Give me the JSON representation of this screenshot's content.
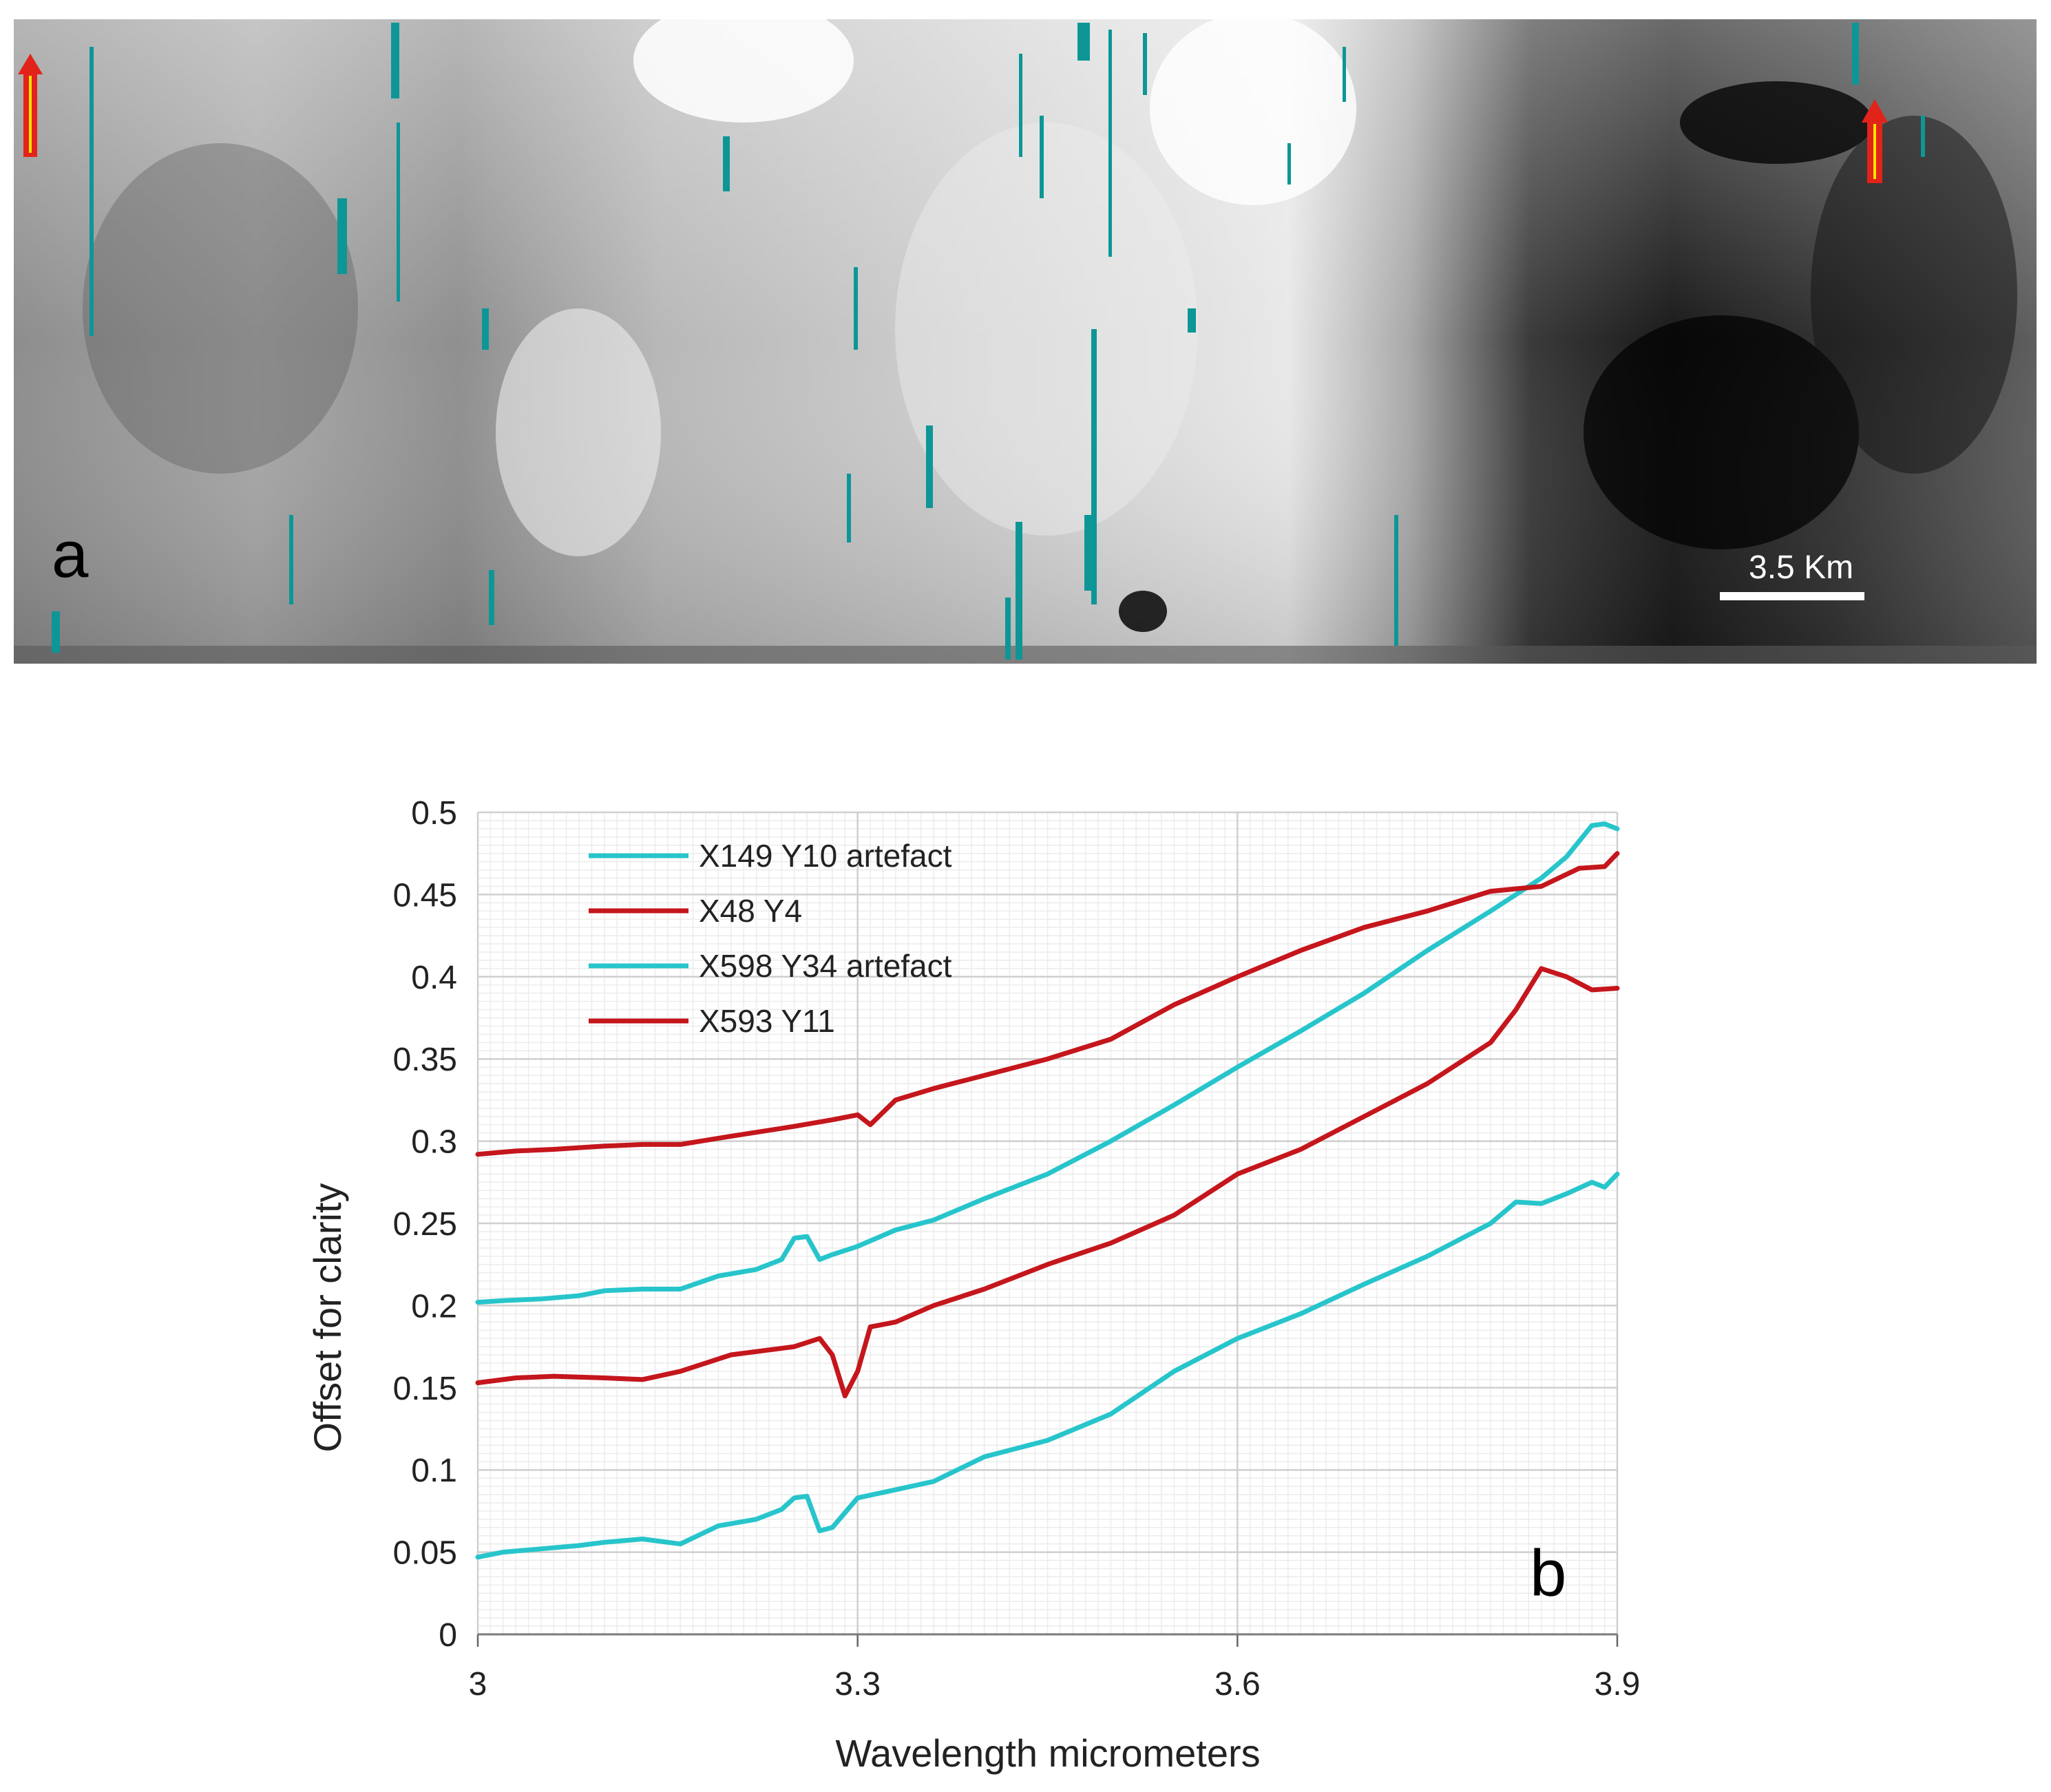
{
  "panel_a": {
    "label": "a",
    "scale_bar_label": "3.5 Km",
    "colors": {
      "artefact_marks": "#0e9696",
      "arrow_fill": "#e2231a",
      "arrow_core": "#f5e400",
      "scale_bar": "#ffffff"
    },
    "arrows": [
      "left-red-arrow",
      "right-red-arrow"
    ]
  },
  "chart_data": {
    "type": "line",
    "panel_label": "b",
    "title": "",
    "xlabel": "Wavelength micrometers",
    "ylabel": "Offset for clarity",
    "xlim": [
      3.0,
      3.9
    ],
    "ylim": [
      0,
      0.5
    ],
    "x_ticks": [
      "3",
      "3.3",
      "3.6",
      "3.9"
    ],
    "y_ticks": [
      "0",
      "0.05",
      "0.1",
      "0.15",
      "0.2",
      "0.25",
      "0.3",
      "0.35",
      "0.4",
      "0.45",
      "0.5"
    ],
    "grid": true,
    "legend_position": "top-left",
    "series": [
      {
        "name": "X149 Y10 artefact",
        "color": "#27c5cb",
        "x": [
          3.0,
          3.02,
          3.05,
          3.08,
          3.1,
          3.13,
          3.16,
          3.19,
          3.22,
          3.24,
          3.25,
          3.26,
          3.27,
          3.28,
          3.3,
          3.33,
          3.36,
          3.4,
          3.45,
          3.5,
          3.55,
          3.6,
          3.65,
          3.7,
          3.75,
          3.8,
          3.84,
          3.86,
          3.88,
          3.89,
          3.9
        ],
        "y": [
          0.202,
          0.203,
          0.204,
          0.206,
          0.209,
          0.21,
          0.21,
          0.218,
          0.222,
          0.228,
          0.241,
          0.242,
          0.228,
          0.231,
          0.236,
          0.246,
          0.252,
          0.265,
          0.28,
          0.3,
          0.322,
          0.345,
          0.367,
          0.39,
          0.416,
          0.44,
          0.46,
          0.473,
          0.492,
          0.493,
          0.49
        ]
      },
      {
        "name": "X48 Y4",
        "color": "#c4161c",
        "x": [
          3.0,
          3.03,
          3.06,
          3.1,
          3.13,
          3.16,
          3.2,
          3.25,
          3.28,
          3.3,
          3.31,
          3.33,
          3.36,
          3.4,
          3.45,
          3.5,
          3.55,
          3.6,
          3.65,
          3.7,
          3.75,
          3.8,
          3.84,
          3.87,
          3.89,
          3.9
        ],
        "y": [
          0.292,
          0.294,
          0.295,
          0.297,
          0.298,
          0.298,
          0.303,
          0.309,
          0.313,
          0.316,
          0.31,
          0.325,
          0.332,
          0.34,
          0.35,
          0.362,
          0.383,
          0.4,
          0.416,
          0.43,
          0.44,
          0.452,
          0.455,
          0.466,
          0.467,
          0.475
        ]
      },
      {
        "name": "X598 Y34 artefact",
        "color": "#27c5cb",
        "x": [
          3.0,
          3.02,
          3.05,
          3.08,
          3.1,
          3.13,
          3.16,
          3.19,
          3.22,
          3.24,
          3.25,
          3.26,
          3.27,
          3.28,
          3.3,
          3.33,
          3.36,
          3.4,
          3.45,
          3.5,
          3.55,
          3.6,
          3.65,
          3.7,
          3.75,
          3.8,
          3.82,
          3.84,
          3.86,
          3.88,
          3.89,
          3.9
        ],
        "y": [
          0.047,
          0.05,
          0.052,
          0.054,
          0.056,
          0.058,
          0.055,
          0.066,
          0.07,
          0.076,
          0.083,
          0.084,
          0.063,
          0.065,
          0.083,
          0.088,
          0.093,
          0.108,
          0.118,
          0.134,
          0.16,
          0.18,
          0.195,
          0.213,
          0.23,
          0.25,
          0.263,
          0.262,
          0.268,
          0.275,
          0.272,
          0.28
        ]
      },
      {
        "name": "X593 Y11",
        "color": "#c4161c",
        "x": [
          3.0,
          3.03,
          3.06,
          3.1,
          3.13,
          3.16,
          3.2,
          3.25,
          3.27,
          3.28,
          3.29,
          3.3,
          3.31,
          3.33,
          3.36,
          3.4,
          3.45,
          3.5,
          3.55,
          3.6,
          3.65,
          3.7,
          3.75,
          3.8,
          3.82,
          3.84,
          3.86,
          3.88,
          3.9
        ],
        "y": [
          0.153,
          0.156,
          0.157,
          0.156,
          0.155,
          0.16,
          0.17,
          0.175,
          0.18,
          0.17,
          0.145,
          0.16,
          0.187,
          0.19,
          0.2,
          0.21,
          0.225,
          0.238,
          0.255,
          0.28,
          0.295,
          0.315,
          0.335,
          0.36,
          0.38,
          0.405,
          0.4,
          0.392,
          0.393
        ]
      }
    ]
  }
}
